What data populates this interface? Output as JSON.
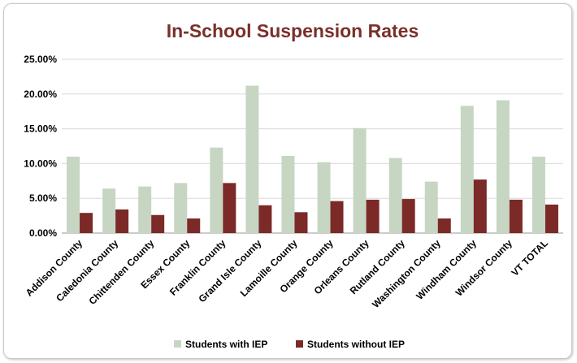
{
  "chart_data": {
    "type": "bar",
    "title": "In-School Suspension Rates",
    "categories": [
      "Addison County",
      "Caledonia County",
      "Chittenden County",
      "Essex County",
      "Franklin County",
      "Grand Isle County",
      "Lamoille County",
      "Orange County",
      "Orleans County",
      "Rutland County",
      "Washington County",
      "Windham County",
      "Windsor County",
      "VT TOTAL"
    ],
    "series": [
      {
        "name": "Students with IEP",
        "color": "#c6d6c3",
        "values": [
          0.11,
          0.064,
          0.067,
          0.072,
          0.123,
          0.212,
          0.111,
          0.102,
          0.151,
          0.108,
          0.074,
          0.183,
          0.191,
          0.11
        ]
      },
      {
        "name": "Students without IEP",
        "color": "#7b2a28",
        "values": [
          0.029,
          0.034,
          0.026,
          0.021,
          0.072,
          0.04,
          0.03,
          0.046,
          0.048,
          0.049,
          0.021,
          0.077,
          0.048,
          0.041
        ]
      }
    ],
    "ylim": [
      0,
      0.25
    ],
    "yticks": [
      "0.00%",
      "5.00%",
      "10.00%",
      "15.00%",
      "20.00%",
      "25.00%"
    ],
    "grid": true,
    "legend_position": "bottom"
  }
}
